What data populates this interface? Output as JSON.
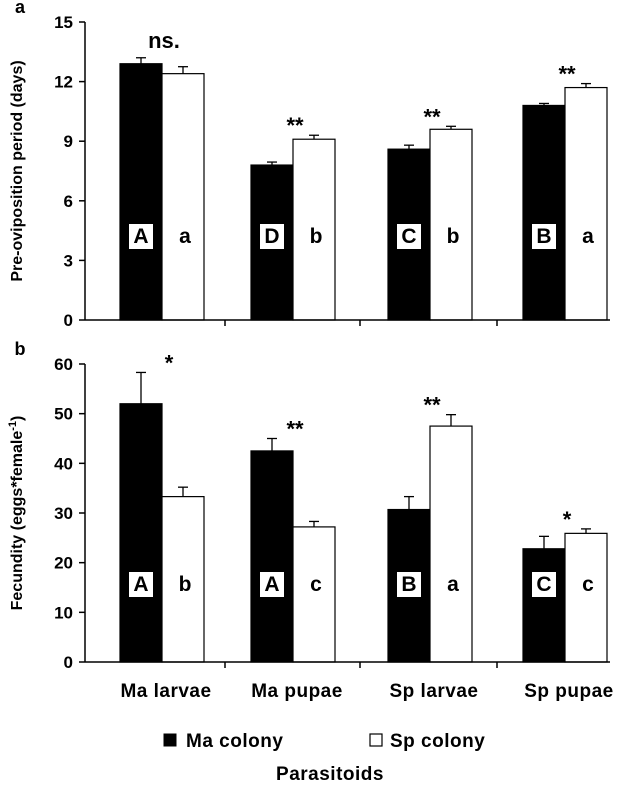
{
  "chart_data": [
    {
      "type": "bar",
      "panel_label": "a",
      "ylabel": "Pre-oviposition period (days)",
      "ylim": [
        0,
        15
      ],
      "yticks": [
        "0",
        "3",
        "6",
        "9",
        "12",
        "15"
      ],
      "categories": [
        "Ma larvae",
        "Ma pupae",
        "Sp larvae",
        "Sp pupae"
      ],
      "series": [
        {
          "name": "Ma colony",
          "color": "#000000",
          "values": [
            12.9,
            7.8,
            8.6,
            10.8
          ],
          "errors": [
            0.3,
            0.15,
            0.2,
            0.1
          ],
          "letters": [
            "A",
            "D",
            "C",
            "B"
          ]
        },
        {
          "name": "Sp colony",
          "color": "#ffffff",
          "values": [
            12.4,
            9.1,
            9.6,
            11.7
          ],
          "errors": [
            0.35,
            0.2,
            0.15,
            0.2
          ],
          "letters": [
            "a",
            "b",
            "b",
            "a"
          ]
        }
      ],
      "significance": [
        "ns.",
        "**",
        "**",
        "**"
      ]
    },
    {
      "type": "bar",
      "panel_label": "b",
      "ylabel": "Fecundity (eggs*female",
      "ylabel_sup": "-1",
      "ylabel_close": ")",
      "ylim": [
        0,
        60
      ],
      "yticks": [
        "0",
        "10",
        "20",
        "30",
        "40",
        "50",
        "60"
      ],
      "categories": [
        "Ma larvae",
        "Ma pupae",
        "Sp larvae",
        "Sp pupae"
      ],
      "series": [
        {
          "name": "Ma colony",
          "color": "#000000",
          "values": [
            52.0,
            42.5,
            30.7,
            22.8
          ],
          "errors": [
            6.3,
            2.5,
            2.6,
            2.5
          ],
          "letters": [
            "A",
            "A",
            "B",
            "C"
          ]
        },
        {
          "name": "Sp colony",
          "color": "#ffffff",
          "values": [
            33.3,
            27.2,
            47.5,
            25.9
          ],
          "errors": [
            1.9,
            1.1,
            2.3,
            0.9
          ],
          "letters": [
            "b",
            "c",
            "a",
            "c"
          ]
        }
      ],
      "significance": [
        "*",
        "**",
        "**",
        "*"
      ]
    }
  ],
  "legend": {
    "items": [
      "Ma colony",
      "Sp colony"
    ],
    "placement": "bottom"
  },
  "xlabel": "Parasitoids"
}
